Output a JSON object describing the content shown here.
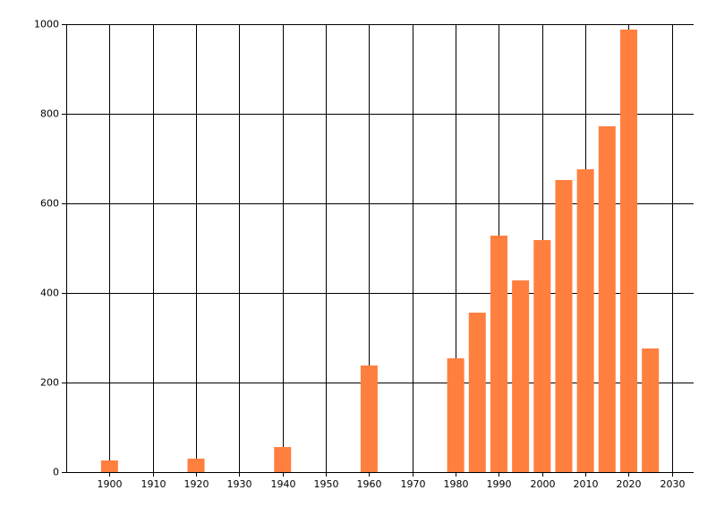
{
  "chart_data": {
    "type": "bar",
    "x": [
      1900,
      1920,
      1940,
      1960,
      1980,
      1985,
      1990,
      1995,
      2000,
      2005,
      2010,
      2015,
      2020,
      2025
    ],
    "values": [
      26,
      30,
      56,
      238,
      254,
      356,
      528,
      428,
      518,
      652,
      676,
      772,
      988,
      276
    ],
    "color": "#ff7f3f",
    "xlim": [
      1890,
      2035
    ],
    "xticks": [
      1900,
      1910,
      1920,
      1930,
      1940,
      1950,
      1960,
      1970,
      1980,
      1990,
      2000,
      2010,
      2020,
      2030
    ],
    "ylim": [
      0,
      1000
    ],
    "yticks": [
      0,
      200,
      400,
      600,
      800,
      1000
    ],
    "grid": true
  }
}
